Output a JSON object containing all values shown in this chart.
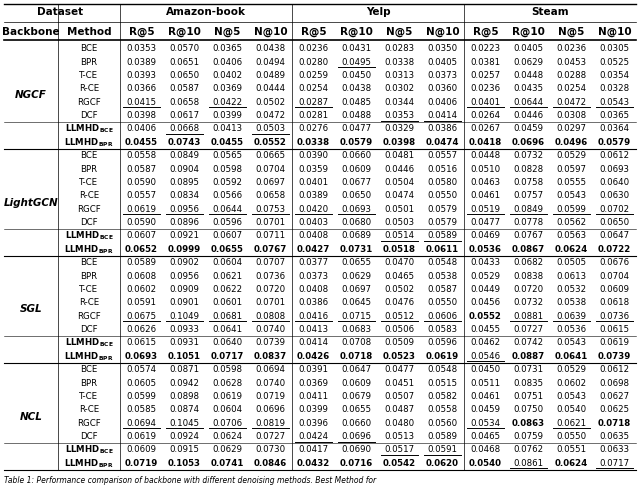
{
  "backbones": [
    "NGCF",
    "LightGCN",
    "SGL",
    "NCL"
  ],
  "methods": [
    "BCE",
    "BPR",
    "T-CE",
    "R-CE",
    "RGCF",
    "DCF",
    "LLMHD_BCE",
    "LLMHD_BPR"
  ],
  "data": {
    "NGCF": {
      "BCE": [
        0.0353,
        0.057,
        0.0365,
        0.0438,
        0.0236,
        0.0431,
        0.0283,
        0.035,
        0.0223,
        0.0405,
        0.0236,
        0.0305
      ],
      "BPR": [
        0.0389,
        0.0651,
        0.0406,
        0.0494,
        0.028,
        0.0495,
        0.0338,
        0.0405,
        0.0381,
        0.0629,
        0.0453,
        0.0525
      ],
      "T-CE": [
        0.0393,
        0.065,
        0.0402,
        0.0489,
        0.0259,
        0.045,
        0.0313,
        0.0373,
        0.0257,
        0.0448,
        0.0288,
        0.0354
      ],
      "R-CE": [
        0.0366,
        0.0587,
        0.0369,
        0.0444,
        0.0254,
        0.0438,
        0.0302,
        0.036,
        0.0236,
        0.0435,
        0.0254,
        0.0328
      ],
      "RGCF": [
        0.0415,
        0.0658,
        0.0422,
        0.0502,
        0.0287,
        0.0485,
        0.0344,
        0.0406,
        0.0401,
        0.0644,
        0.0472,
        0.0543
      ],
      "DCF": [
        0.0398,
        0.0617,
        0.0399,
        0.0472,
        0.0281,
        0.0488,
        0.0353,
        0.0414,
        0.0264,
        0.0446,
        0.0308,
        0.0365
      ],
      "LLMHD_BCE": [
        0.0406,
        0.0668,
        0.0413,
        0.0503,
        0.0276,
        0.0477,
        0.0329,
        0.0386,
        0.0267,
        0.0459,
        0.0297,
        0.0364
      ],
      "LLMHD_BPR": [
        0.0455,
        0.0743,
        0.0455,
        0.0552,
        0.0338,
        0.0579,
        0.0398,
        0.0474,
        0.0418,
        0.0696,
        0.0496,
        0.0579
      ]
    },
    "LightGCN": {
      "BCE": [
        0.0558,
        0.0849,
        0.0565,
        0.0665,
        0.039,
        0.066,
        0.0481,
        0.0557,
        0.0448,
        0.0732,
        0.0529,
        0.0612
      ],
      "BPR": [
        0.0587,
        0.0904,
        0.0598,
        0.0704,
        0.0359,
        0.0609,
        0.0446,
        0.0516,
        0.051,
        0.0828,
        0.0597,
        0.0693
      ],
      "T-CE": [
        0.059,
        0.0895,
        0.0592,
        0.0697,
        0.0401,
        0.0677,
        0.0504,
        0.058,
        0.0463,
        0.0758,
        0.0555,
        0.064
      ],
      "R-CE": [
        0.0557,
        0.0834,
        0.0566,
        0.0658,
        0.0389,
        0.065,
        0.0474,
        0.055,
        0.0461,
        0.0757,
        0.0543,
        0.063
      ],
      "RGCF": [
        0.0619,
        0.0956,
        0.0644,
        0.0753,
        0.042,
        0.0693,
        0.0501,
        0.0579,
        0.0519,
        0.0849,
        0.0599,
        0.0702
      ],
      "DCF": [
        0.059,
        0.0896,
        0.0596,
        0.0701,
        0.0403,
        0.068,
        0.0503,
        0.0579,
        0.0477,
        0.0778,
        0.0562,
        0.065
      ],
      "LLMHD_BCE": [
        0.0607,
        0.0921,
        0.0607,
        0.0711,
        0.0408,
        0.0689,
        0.0514,
        0.0589,
        0.0469,
        0.0767,
        0.0563,
        0.0647
      ],
      "LLMHD_BPR": [
        0.0652,
        0.0999,
        0.0655,
        0.0767,
        0.0427,
        0.0731,
        0.0518,
        0.0611,
        0.0536,
        0.0867,
        0.0624,
        0.0722
      ]
    },
    "SGL": {
      "BCE": [
        0.0589,
        0.0902,
        0.0604,
        0.0707,
        0.0377,
        0.0655,
        0.047,
        0.0548,
        0.0433,
        0.0682,
        0.0505,
        0.0676
      ],
      "BPR": [
        0.0608,
        0.0956,
        0.0621,
        0.0736,
        0.0373,
        0.0629,
        0.0465,
        0.0538,
        0.0529,
        0.0838,
        0.0613,
        0.0704
      ],
      "T-CE": [
        0.0602,
        0.0909,
        0.0622,
        0.072,
        0.0408,
        0.0697,
        0.0502,
        0.0587,
        0.0449,
        0.072,
        0.0532,
        0.0609
      ],
      "R-CE": [
        0.0591,
        0.0901,
        0.0601,
        0.0701,
        0.0386,
        0.0645,
        0.0476,
        0.055,
        0.0456,
        0.0732,
        0.0538,
        0.0618
      ],
      "RGCF": [
        0.0675,
        0.1049,
        0.0681,
        0.0808,
        0.0416,
        0.0715,
        0.0512,
        0.0606,
        0.0552,
        0.0881,
        0.0639,
        0.0736
      ],
      "DCF": [
        0.0626,
        0.0933,
        0.0641,
        0.074,
        0.0413,
        0.0683,
        0.0506,
        0.0583,
        0.0455,
        0.0727,
        0.0536,
        0.0615
      ],
      "LLMHD_BCE": [
        0.0615,
        0.0931,
        0.064,
        0.0739,
        0.0414,
        0.0708,
        0.0509,
        0.0596,
        0.0462,
        0.0742,
        0.0543,
        0.0619
      ],
      "LLMHD_BPR": [
        0.0693,
        0.1051,
        0.0717,
        0.0837,
        0.0426,
        0.0718,
        0.0523,
        0.0619,
        0.0546,
        0.0887,
        0.0641,
        0.0739
      ]
    },
    "NCL": {
      "BCE": [
        0.0574,
        0.0871,
        0.0598,
        0.0694,
        0.0391,
        0.0647,
        0.0477,
        0.0548,
        0.045,
        0.0731,
        0.0529,
        0.0612
      ],
      "BPR": [
        0.0605,
        0.0942,
        0.0628,
        0.074,
        0.0369,
        0.0609,
        0.0451,
        0.0515,
        0.0511,
        0.0835,
        0.0602,
        0.0698
      ],
      "T-CE": [
        0.0599,
        0.0898,
        0.0619,
        0.0719,
        0.0411,
        0.0679,
        0.0507,
        0.0582,
        0.0461,
        0.0751,
        0.0543,
        0.0627
      ],
      "R-CE": [
        0.0585,
        0.0874,
        0.0604,
        0.0696,
        0.0399,
        0.0655,
        0.0487,
        0.0558,
        0.0459,
        0.075,
        0.054,
        0.0625
      ],
      "RGCF": [
        0.0694,
        0.1045,
        0.0706,
        0.0819,
        0.0396,
        0.066,
        0.048,
        0.056,
        0.0534,
        0.0863,
        0.0621,
        0.0718
      ],
      "DCF": [
        0.0619,
        0.0924,
        0.0624,
        0.0727,
        0.0424,
        0.0696,
        0.0513,
        0.0589,
        0.0465,
        0.0759,
        0.055,
        0.0635
      ],
      "LLMHD_BCE": [
        0.0609,
        0.0915,
        0.0629,
        0.073,
        0.0417,
        0.069,
        0.0517,
        0.0591,
        0.0468,
        0.0762,
        0.0551,
        0.0633
      ],
      "LLMHD_BPR": [
        0.0719,
        0.1053,
        0.0741,
        0.0846,
        0.0432,
        0.0716,
        0.0542,
        0.062,
        0.054,
        0.0861,
        0.0624,
        0.0717
      ]
    }
  },
  "caption": "Table 1: Performance comparison of backbone with different denoising methods. Best Method for"
}
